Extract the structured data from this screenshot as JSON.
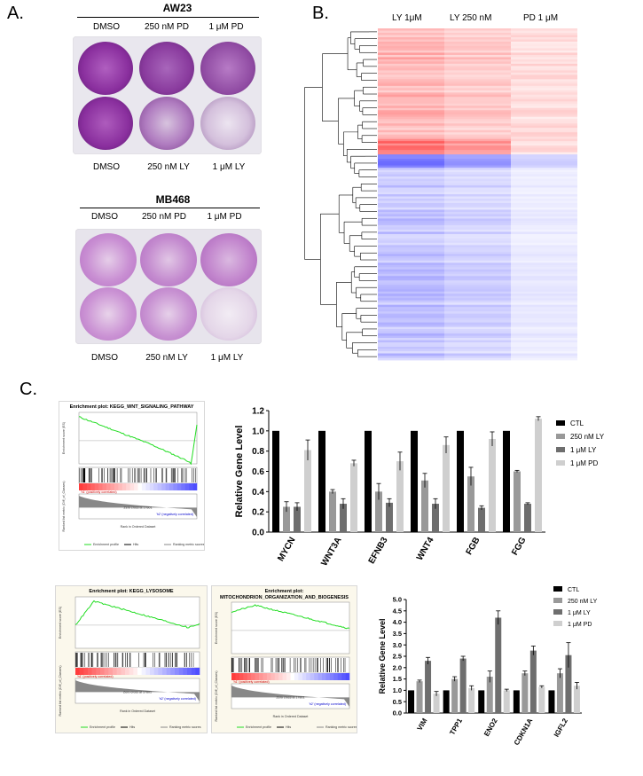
{
  "panels": {
    "a": "A.",
    "b": "B.",
    "c": "C."
  },
  "panel_a": {
    "plate1": {
      "title": "AW23",
      "top_labels": [
        "DMSO",
        "250 nM PD",
        "1 μM PD"
      ],
      "bottom_labels": [
        "DMSO",
        "250 nM LY",
        "1 μM LY"
      ]
    },
    "plate2": {
      "title": "MB468",
      "top_labels": [
        "DMSO",
        "250 nM PD",
        "1 μM PD"
      ],
      "bottom_labels": [
        "DMSO",
        "250 nM LY",
        "1 μM LY"
      ]
    }
  },
  "panel_b": {
    "columns": [
      "LY 1μM",
      "LY 250 nM",
      "PD 1 μM"
    ]
  },
  "gsea": [
    {
      "title_line1": "Enrichment plot: KEGG_WNT_SIGNALING_PATHWAY",
      "title_line2": "",
      "pos_label": "'h1' (positively correlated)",
      "neg_label": "'h2' (negatively correlated)",
      "zero_label": "Zero cross at 17801",
      "x_label": "Rank in Ordered Dataset",
      "y_label_top": "Enrichment score (ES)",
      "y_label_bottom": "Ranked list metric (Diff_of_Classes)",
      "legend": [
        "Enrichment profile",
        "Hits",
        "Ranking metric scores"
      ]
    },
    {
      "title_line1": "Enrichment plot: KEGG_LYSOSOME",
      "title_line2": "",
      "pos_label": "'h1' (positively correlated)",
      "neg_label": "'h2' (negatively correlated)",
      "zero_label": "Zero cross at 17801",
      "x_label": "Rank in Ordered Dataset",
      "y_label_top": "Enrichment score (ES)",
      "y_label_bottom": "Ranked list metric (Diff_of_Classes)",
      "legend": [
        "Enrichment profile",
        "Hits",
        "Ranking metric scores"
      ]
    },
    {
      "title_line1": "Enrichment plot:",
      "title_line2": "MITOCHONDRION_ORGANIZATION_AND_BIOGENESIS",
      "pos_label": "'h1' (positively correlated)",
      "neg_label": "'h2' (negatively correlated)",
      "zero_label": "Zero cross at 17801",
      "x_label": "Rank in Ordered Dataset",
      "y_label_top": "Enrichment score (ES)",
      "y_label_bottom": "Ranked list metric (Diff_of_Classes)",
      "legend": [
        "Enrichment profile",
        "Hits",
        "Ranking metric scores"
      ]
    }
  ],
  "colors": {
    "ctl": "#000000",
    "ly250": "#999999",
    "ly1": "#6e6e6e",
    "pd1": "#cfcfcf",
    "heat_up": "#ff5a5a",
    "heat_down": "#5a5aff",
    "es_line": "#22dd22"
  },
  "chart_data": [
    {
      "type": "bar",
      "ylabel": "Relative Gene Level",
      "xlabel": "",
      "title": "",
      "ylim": [
        0,
        1.2
      ],
      "yticks": [
        "0.0",
        "0.2",
        "0.4",
        "0.6",
        "0.8",
        "1.0",
        "1.2"
      ],
      "categories": [
        "MYCN",
        "WNT3A",
        "EFNB3",
        "WNT4",
        "FGB",
        "FGG"
      ],
      "series": [
        {
          "name": "CTL",
          "values": [
            1.0,
            1.0,
            1.0,
            1.0,
            1.0,
            1.0
          ],
          "errors": [
            0,
            0,
            0,
            0,
            0,
            0
          ]
        },
        {
          "name": "250 nM LY",
          "values": [
            0.25,
            0.4,
            0.4,
            0.51,
            0.55,
            0.6
          ],
          "errors": [
            0.05,
            0.02,
            0.08,
            0.07,
            0.09,
            0.01
          ]
        },
        {
          "name": "1 μM LY",
          "values": [
            0.25,
            0.28,
            0.29,
            0.28,
            0.24,
            0.28
          ],
          "errors": [
            0.04,
            0.05,
            0.04,
            0.05,
            0.02,
            0.01
          ]
        },
        {
          "name": "1 μM PD",
          "values": [
            0.81,
            0.68,
            0.7,
            0.86,
            0.92,
            1.12
          ],
          "errors": [
            0.1,
            0.03,
            0.09,
            0.08,
            0.07,
            0.02
          ]
        }
      ]
    },
    {
      "type": "bar",
      "ylabel": "Relative Gene Level",
      "xlabel": "",
      "title": "",
      "ylim": [
        0,
        5.0
      ],
      "yticks": [
        "0.0",
        "0.5",
        "1.0",
        "1.5",
        "2.0",
        "2.5",
        "3.0",
        "3.5",
        "4.0",
        "4.5",
        "5.0"
      ],
      "categories": [
        "VIM",
        "TPP1",
        "ENO2",
        "CDKN1A",
        "IGFL2"
      ],
      "series": [
        {
          "name": "CTL",
          "values": [
            1.0,
            1.0,
            1.0,
            1.0,
            1.0
          ],
          "errors": [
            0,
            0,
            0,
            0,
            0
          ]
        },
        {
          "name": "250 nM LY",
          "values": [
            1.4,
            1.5,
            1.6,
            1.75,
            1.75
          ],
          "errors": [
            0.05,
            0.1,
            0.25,
            0.1,
            0.2
          ]
        },
        {
          "name": "1 μM LY",
          "values": [
            2.3,
            2.4,
            4.2,
            2.75,
            2.55
          ],
          "errors": [
            0.15,
            0.1,
            0.3,
            0.2,
            0.55
          ]
        },
        {
          "name": "1 μM PD",
          "values": [
            0.85,
            1.1,
            1.0,
            1.15,
            1.2
          ],
          "errors": [
            0.1,
            0.1,
            0.05,
            0.05,
            0.15
          ]
        }
      ]
    }
  ]
}
